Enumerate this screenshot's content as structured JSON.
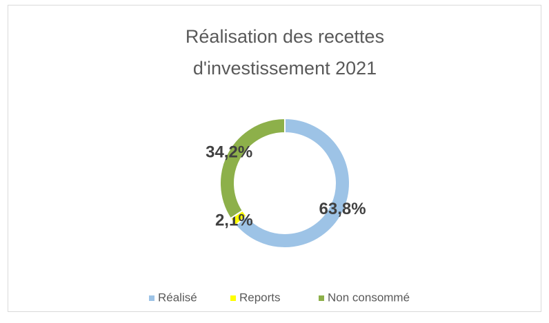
{
  "chart_data": {
    "type": "donut",
    "title": [
      "Réalisation des recettes",
      "d'investissement 2021"
    ],
    "categories": [
      "Réalisé",
      "Reports",
      "Non consommé"
    ],
    "values": [
      63.8,
      2.1,
      34.2
    ],
    "value_labels": [
      "63,8%",
      "2,1%",
      "34,2%"
    ],
    "colors": [
      "#9dc3e6",
      "#ffff00",
      "#8db04a"
    ],
    "legend": "bottom"
  }
}
